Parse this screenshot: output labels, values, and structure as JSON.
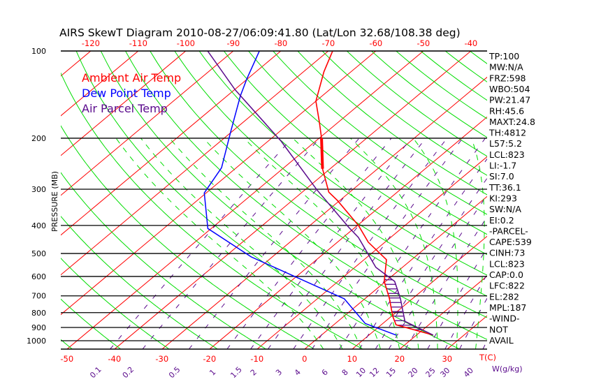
{
  "colors": {
    "ambient": "#ff0000",
    "dewpoint": "#0000ff",
    "parcel": "#5a0a8c",
    "isotherm": "#ff0000",
    "dry_adiabat": "#00dd00",
    "moist_adiabat": "#00dd00",
    "mixing_ratio": "#5a0a8c",
    "isobar": "#000000",
    "hatch": "#5a0a8c"
  },
  "chart_data": {
    "type": "line",
    "subtype": "skew-t",
    "title": "AIRS SkewT Diagram 2010-08-27/06:09:41.80 (Lat/Lon 32.68/108.38 deg)",
    "ylabel": "PRESSURE (MB)",
    "xlabel": "T(C)",
    "w_label": "W(g/kg)",
    "yscale": "log",
    "ylim": [
      1070,
      100
    ],
    "pressure_ticks": [
      "100",
      "200",
      "300",
      "400",
      "500",
      "600",
      "700",
      "800",
      "900",
      "1000"
    ],
    "temp_ticks_bottom": [
      "-50",
      "-40",
      "-30",
      "-20",
      "-10",
      "0",
      "10",
      "20",
      "30"
    ],
    "temp_ticks_top": [
      "-120",
      "-110",
      "-100",
      "-90",
      "-80",
      "-70",
      "-60",
      "-50",
      "-40"
    ],
    "mixing_ratio_ticks": [
      "0.1",
      "0.2",
      "0.5",
      "1",
      "1.5",
      "2",
      "3",
      "4",
      "6",
      "8",
      "10",
      "12",
      "15",
      "20",
      "25",
      "30",
      "40"
    ],
    "legend": [
      {
        "label": "Ambient Air Temp",
        "key": "ambient"
      },
      {
        "label": "Dew Point Temp",
        "key": "dewpoint"
      },
      {
        "label": "Air Parcel Temp",
        "key": "parcel"
      }
    ],
    "series": [
      {
        "name": "Ambient Air Temp",
        "key": "ambient",
        "points": [
          [
            100,
            -69.1
          ],
          [
            118,
            -65.7
          ],
          [
            149,
            -60.0
          ],
          [
            176,
            -54.0
          ],
          [
            200,
            -49.5
          ],
          [
            255,
            -41.6
          ],
          [
            307,
            -34.4
          ],
          [
            328,
            -30.5
          ],
          [
            400,
            -19.8
          ],
          [
            457,
            -13.5
          ],
          [
            525,
            -5.3
          ],
          [
            624,
            -0.3
          ],
          [
            713,
            5.0
          ],
          [
            824,
            10.3
          ],
          [
            881,
            13.1
          ],
          [
            956,
            23.5
          ]
        ]
      },
      {
        "name": "Dew Point Temp",
        "key": "dewpoint",
        "points": [
          [
            100,
            -84.5
          ],
          [
            125,
            -80.1
          ],
          [
            143,
            -77.2
          ],
          [
            188,
            -70.5
          ],
          [
            253,
            -63.1
          ],
          [
            309,
            -60.4
          ],
          [
            410,
            -50.7
          ],
          [
            514,
            -34.4
          ],
          [
            717,
            -4.3
          ],
          [
            872,
            6.3
          ],
          [
            957,
            15.8
          ]
        ]
      },
      {
        "name": "Air Parcel Temp",
        "key": "parcel",
        "points": [
          [
            956,
            23.5
          ],
          [
            857,
            14.1
          ],
          [
            713,
            7.3
          ],
          [
            624,
            1.9
          ],
          [
            558,
            -5.6
          ],
          [
            440,
            -16.8
          ],
          [
            405,
            -21.5
          ],
          [
            343,
            -30.5
          ],
          [
            302,
            -37.4
          ],
          [
            205,
            -57.2
          ],
          [
            136,
            -79.9
          ],
          [
            100,
            -95.4
          ]
        ]
      }
    ],
    "indices": [
      "TP:100",
      "MW:N/A",
      "FRZ:598",
      "WBO:504",
      "PW:21.47",
      "RH:45.6",
      "MAXT:24.8",
      "TH:4812",
      "L57:5.2",
      "LCL:823",
      "LI:-1.7",
      "SI:7.0",
      "TT:36.1",
      "KI:293",
      "SW:N/A",
      "EI:0.2",
      "-PARCEL-",
      "CAPE:539",
      "CINH:73",
      "LCL:823",
      "CAP:0.0",
      "LFC:822",
      "EL:282",
      "MPL:187",
      "-WIND-",
      "NOT",
      "AVAIL"
    ]
  }
}
